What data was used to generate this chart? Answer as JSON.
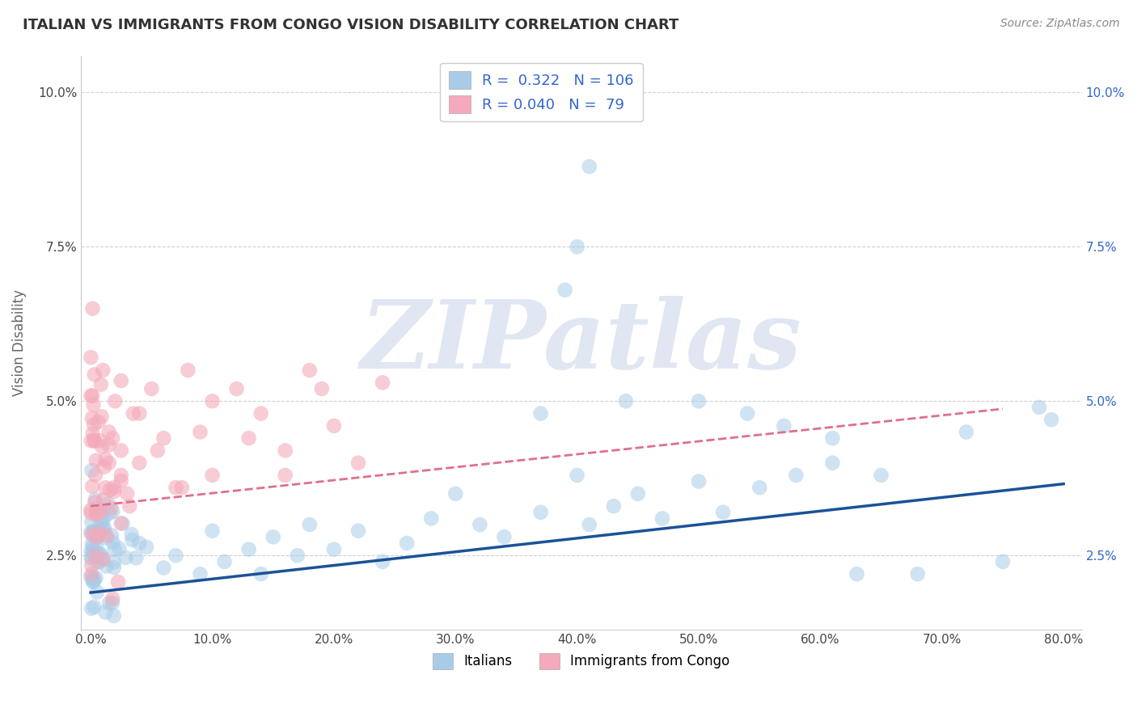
{
  "title": "ITALIAN VS IMMIGRANTS FROM CONGO VISION DISABILITY CORRELATION CHART",
  "source_text": "Source: ZipAtlas.com",
  "ylabel": "Vision Disability",
  "xlim_min": -0.008,
  "xlim_max": 0.815,
  "ylim_min": 0.013,
  "ylim_max": 0.106,
  "xticks": [
    0.0,
    0.1,
    0.2,
    0.3,
    0.4,
    0.5,
    0.6,
    0.7,
    0.8
  ],
  "yticks": [
    0.025,
    0.05,
    0.075,
    0.1
  ],
  "ytick_labels": [
    "2.5%",
    "5.0%",
    "7.5%",
    "10.0%"
  ],
  "xtick_labels": [
    "0.0%",
    "10.0%",
    "20.0%",
    "30.0%",
    "40.0%",
    "50.0%",
    "60.0%",
    "70.0%",
    "80.0%"
  ],
  "watermark": "ZIPatlas",
  "watermark_color": "#c8d4e8",
  "title_color": "#333333",
  "source_color": "#888888",
  "grid_color": "#cccccc",
  "background_color": "#ffffff",
  "axis_label_color": "#666666",
  "legend_text_color": "#3366cc",
  "right_tick_color": "#3366cc",
  "italians_scatter_color": "#a8cce8",
  "italians_line_color": "#1a5296",
  "congo_scatter_color": "#f4aaba",
  "congo_line_color": "#e07088",
  "italians_R": 0.322,
  "italians_N": 106,
  "congo_R": 0.04,
  "congo_N": 79,
  "italians_label": "Italians",
  "congo_label": "Immigrants from Congo",
  "italians_trend": [
    0.0,
    0.8,
    0.022,
    0.019
  ],
  "congo_trend": [
    0.0,
    0.75,
    0.021,
    0.033
  ]
}
